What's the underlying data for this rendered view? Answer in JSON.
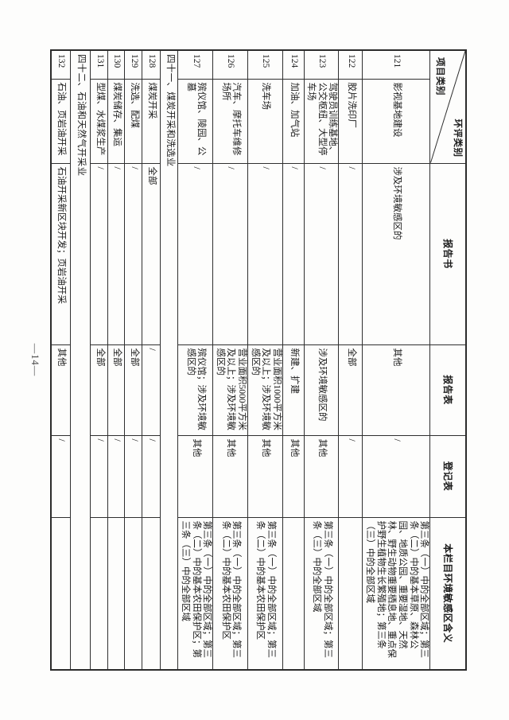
{
  "page": {
    "number_label": "—14—"
  },
  "table": {
    "corner": {
      "column_axis_label": "环评类别",
      "row_axis_label": "项目类别"
    },
    "headers": {
      "report_book": "报告书",
      "report_form": "报告表",
      "registration_form": "登记表",
      "sensitive_meaning": "本栏目环境敏感区含义"
    },
    "rows": [
      {
        "type": "item",
        "no": "121",
        "name": "影视基地建设",
        "report_book": "涉及环境敏感区的",
        "report_form": "其他",
        "registration_form": "/",
        "meaning": "第三条（一）中的全部区域；第三条（二）中的基本草原、森林公园、地质公园、重要湿地、天然林、野生动物重要栖息地、重点保护野生植物生长繁殖地；第三条（三）中的全部区域"
      },
      {
        "type": "item",
        "no": "122",
        "name": "胶片洗印厂",
        "report_book": "/",
        "report_form": "全部",
        "registration_form": "/",
        "meaning": ""
      },
      {
        "type": "item",
        "no": "123",
        "name": "驾驶员训练基地、公交枢纽、大型停车场",
        "report_book": "/",
        "report_form": "涉及环境敏感区的",
        "registration_form": "其他",
        "meaning": "第三条（一）中的全部区域；第三条（三）中的全部区域"
      },
      {
        "type": "item",
        "no": "124",
        "name": "加油、加气站",
        "report_book": "/",
        "report_form": "新建、扩建",
        "registration_form": "其他",
        "meaning": ""
      },
      {
        "type": "item",
        "no": "125",
        "name": "洗车场",
        "report_book": "/",
        "report_form": "营业面积1000平方米及以上；涉及环境敏感区的",
        "registration_form": "其他",
        "meaning": "第三条（一）中的全部区域；第三条（二）中的基本农田保护区"
      },
      {
        "type": "item",
        "no": "126",
        "name": "汽车、摩托车维修场所",
        "report_book": "/",
        "report_form": "营业面积5000平方米及以上；涉及环境敏感区的",
        "registration_form": "其他",
        "meaning": "第三条（一）中的全部区域；第三条（二）中的基本农田保护区"
      },
      {
        "type": "item",
        "no": "127",
        "name": "殡仪馆、陵园、公墓",
        "report_book": "/",
        "report_form": "殡仪馆；涉及环境敏感区的",
        "registration_form": "其他",
        "meaning": "第三条（一）中的全部区域；第三条（二）中的基本农田保护区；第三条（三）中的全部区域"
      },
      {
        "type": "section",
        "label": "四十一、煤炭开采和洗选业"
      },
      {
        "type": "item",
        "no": "128",
        "name": "煤炭开采",
        "report_book": "全部",
        "report_form": "/",
        "registration_form": "/",
        "meaning": ""
      },
      {
        "type": "item",
        "no": "129",
        "name": "洗选、配煤",
        "report_book": "/",
        "report_form": "全部",
        "registration_form": "/",
        "meaning": ""
      },
      {
        "type": "item",
        "no": "130",
        "name": "煤炭储存、集运",
        "report_book": "/",
        "report_form": "全部",
        "registration_form": "/",
        "meaning": ""
      },
      {
        "type": "item",
        "no": "131",
        "name": "型煤、水煤浆生产",
        "report_book": "/",
        "report_form": "全部",
        "registration_form": "/",
        "meaning": ""
      },
      {
        "type": "section",
        "label": "四十二、石油和天然气开采业"
      },
      {
        "type": "item",
        "no": "132",
        "name": "石油、页岩油开采",
        "report_book": "石油开采新区块开发；页岩油开采",
        "report_form": "其他",
        "registration_form": "/",
        "meaning": ""
      }
    ]
  }
}
